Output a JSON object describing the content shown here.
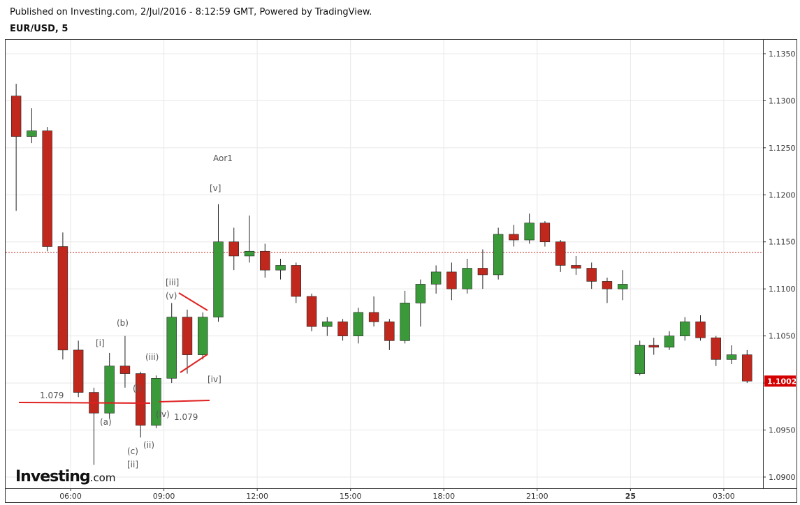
{
  "chart_data": {
    "type": "candlestick",
    "header": "Published on Investing.com, 2/Jul/2016 - 8:12:59 GMT, Powered by TradingView.",
    "title": "EUR/USD, 5",
    "brand": "Investing",
    "brand_suffix": ".com",
    "up_color": "#3a9a3a",
    "down_color": "#c0281e",
    "grid": true,
    "xlim": [
      3.91,
      28.26
    ],
    "ylim": [
      1.08881,
      1.13648
    ],
    "xticks": [
      {
        "value": 6,
        "label": "06:00"
      },
      {
        "value": 9,
        "label": "09:00"
      },
      {
        "value": 12,
        "label": "12:00"
      },
      {
        "value": 15,
        "label": "15:00"
      },
      {
        "value": 18,
        "label": "18:00"
      },
      {
        "value": 21,
        "label": "21:00"
      },
      {
        "value": 24,
        "label": "25"
      },
      {
        "value": 27,
        "label": "03:00"
      }
    ],
    "yticks": [
      {
        "value": 1.09,
        "label": "1.0900"
      },
      {
        "value": 1.095,
        "label": "1.0950"
      },
      {
        "value": 1.1,
        "label": "1.1000"
      },
      {
        "value": 1.105,
        "label": "1.1050"
      },
      {
        "value": 1.11,
        "label": "1.1100"
      },
      {
        "value": 1.115,
        "label": "1.1150"
      },
      {
        "value": 1.12,
        "label": "1.1200"
      },
      {
        "value": 1.125,
        "label": "1.1250"
      },
      {
        "value": 1.13,
        "label": "1.1300"
      },
      {
        "value": 1.135,
        "label": "1.1350"
      }
    ],
    "reference_line": 1.1139,
    "last_price": 1.1002,
    "x": [
      4.25,
      4.75,
      5.25,
      5.75,
      6.25,
      6.75,
      7.25,
      7.75,
      8.25,
      8.75,
      9.25,
      9.75,
      10.25,
      10.75,
      11.25,
      11.75,
      12.25,
      12.75,
      13.25,
      13.75,
      14.25,
      14.75,
      15.25,
      15.75,
      16.25,
      16.75,
      17.25,
      17.75,
      18.25,
      18.75,
      19.25,
      19.75,
      20.25,
      20.75,
      21.25,
      21.75,
      22.25,
      22.75,
      23.25,
      23.75,
      24.3,
      24.75,
      25.25,
      25.75,
      26.25,
      26.75,
      27.25,
      27.75
    ],
    "open": [
      1.1305,
      1.1262,
      1.1268,
      1.1145,
      1.1035,
      1.099,
      1.0968,
      1.1018,
      1.101,
      1.0955,
      1.1005,
      1.107,
      1.103,
      1.107,
      1.115,
      1.1135,
      1.114,
      1.112,
      1.1125,
      1.1092,
      1.106,
      1.1065,
      1.105,
      1.1075,
      1.1065,
      1.1045,
      1.1085,
      1.1105,
      1.1118,
      1.11,
      1.1122,
      1.1115,
      1.1158,
      1.1152,
      1.117,
      1.115,
      1.1125,
      1.1122,
      1.1108,
      1.11,
      1.101,
      1.104,
      1.1038,
      1.105,
      1.1065,
      1.1048,
      1.1025,
      1.103
    ],
    "high": [
      1.1318,
      1.1292,
      1.1272,
      1.116,
      1.1045,
      1.0995,
      1.1032,
      1.105,
      1.1012,
      1.1008,
      1.1085,
      1.1078,
      1.1075,
      1.119,
      1.1165,
      1.1178,
      1.1148,
      1.1132,
      1.1128,
      1.1095,
      1.107,
      1.1068,
      1.108,
      1.1092,
      1.1068,
      1.1098,
      1.111,
      1.1125,
      1.1128,
      1.1132,
      1.1142,
      1.1165,
      1.1168,
      1.118,
      1.1172,
      1.1152,
      1.1135,
      1.1128,
      1.1112,
      1.112,
      1.1045,
      1.1048,
      1.1055,
      1.107,
      1.1072,
      1.105,
      1.104,
      1.1035
    ],
    "low": [
      1.1183,
      1.1255,
      1.114,
      1.1025,
      1.0985,
      1.0913,
      1.0962,
      1.0995,
      1.0942,
      1.0952,
      1.1,
      1.101,
      1.1025,
      1.1065,
      1.112,
      1.1128,
      1.1112,
      1.111,
      1.1085,
      1.1055,
      1.105,
      1.1045,
      1.1042,
      1.106,
      1.1035,
      1.1042,
      1.106,
      1.1095,
      1.1088,
      1.1095,
      1.11,
      1.111,
      1.1145,
      1.1148,
      1.1145,
      1.1118,
      1.1115,
      1.11,
      1.1085,
      1.1088,
      1.1008,
      1.103,
      1.1035,
      1.1045,
      1.1045,
      1.1018,
      1.102,
      1.1
    ],
    "close": [
      1.1262,
      1.1268,
      1.1145,
      1.1035,
      1.099,
      1.0968,
      1.1018,
      1.101,
      1.0955,
      1.1005,
      1.107,
      1.103,
      1.107,
      1.115,
      1.1135,
      1.114,
      1.112,
      1.1125,
      1.1092,
      1.106,
      1.1065,
      1.105,
      1.1075,
      1.1065,
      1.1045,
      1.1085,
      1.1105,
      1.1118,
      1.11,
      1.1122,
      1.1115,
      1.1158,
      1.1152,
      1.117,
      1.115,
      1.1125,
      1.1122,
      1.1108,
      1.11,
      1.1105,
      1.104,
      1.1038,
      1.105,
      1.1065,
      1.1048,
      1.1025,
      1.103,
      1.1002
    ],
    "annotations": [
      "Aor1",
      "[v]",
      "[iii]",
      "(v)",
      "[iv]",
      "(b)",
      "[i]",
      "(iii)",
      "(i)",
      "1.079",
      "(a)",
      "(iv)",
      "1.079",
      "(c)",
      "(ii)",
      "[ii]"
    ]
  }
}
